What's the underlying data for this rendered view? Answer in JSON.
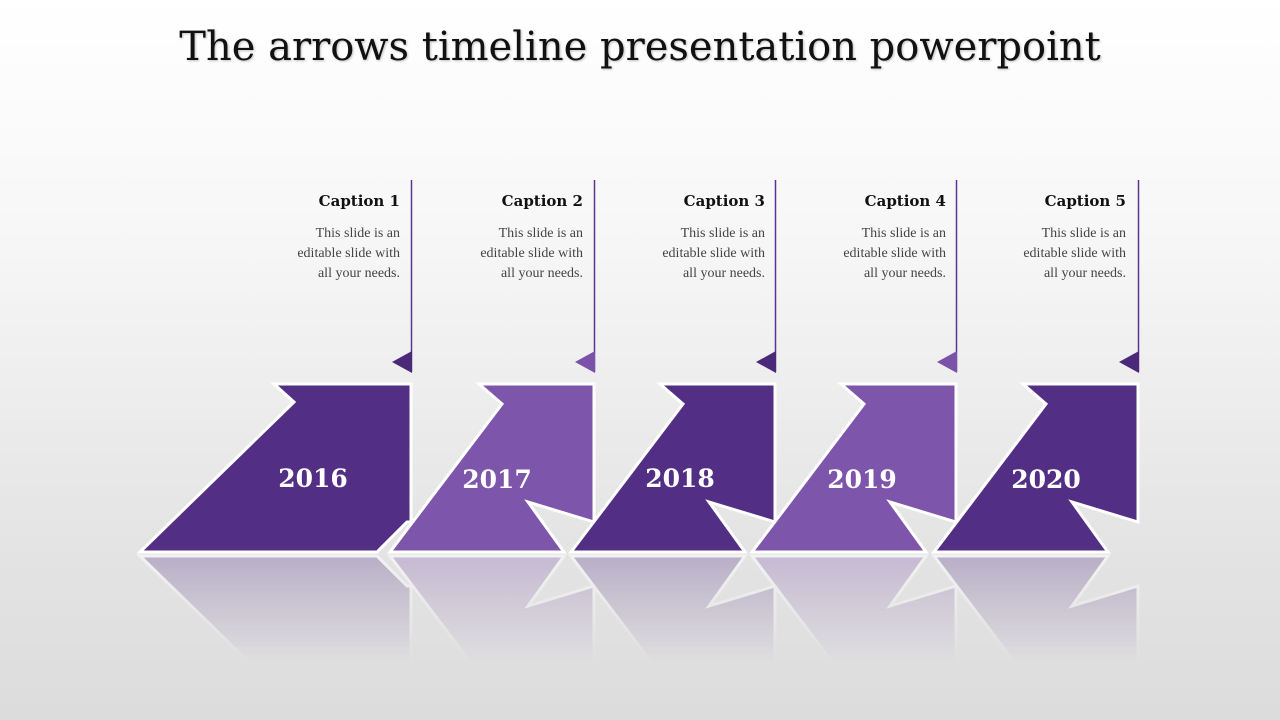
{
  "title": "The arrows timeline presentation powerpoint",
  "colors": {
    "dark_purple": "#522f84",
    "light_purple": "#7d55aa",
    "marker_dark": "#4a2a78",
    "marker_light": "#7a52a8",
    "line": "#5a3590",
    "outline": "#ffffff"
  },
  "steps": [
    {
      "year": "2016",
      "caption": "Caption 1",
      "text": [
        "This slide is an",
        "editable slide with",
        "all your needs."
      ],
      "tone": "dark"
    },
    {
      "year": "2017",
      "caption": "Caption 2",
      "text": [
        "This slide is an",
        "editable slide with",
        "all your needs."
      ],
      "tone": "light"
    },
    {
      "year": "2018",
      "caption": "Caption 3",
      "text": [
        "This slide is an",
        "editable slide with",
        "all your needs."
      ],
      "tone": "dark"
    },
    {
      "year": "2019",
      "caption": "Caption 4",
      "text": [
        "This slide is an",
        "editable slide with",
        "all your needs."
      ],
      "tone": "light"
    },
    {
      "year": "2020",
      "caption": "Caption 5",
      "text": [
        "This slide is an",
        "editable slide with",
        "all your needs."
      ],
      "tone": "dark"
    }
  ]
}
